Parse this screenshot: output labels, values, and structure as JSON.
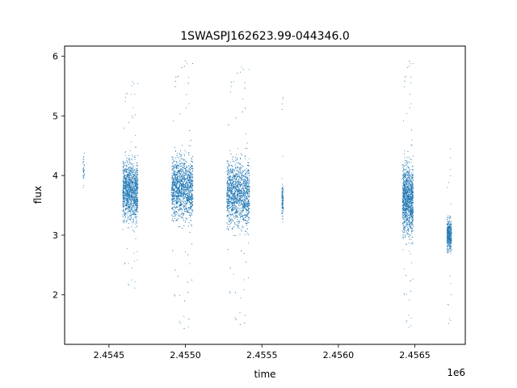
{
  "chart_data": {
    "type": "scatter",
    "title": "1SWASPJ162623.99-044346.0",
    "xlabel": "time",
    "ylabel": "flux",
    "x_offset_label": "1e6",
    "xlim": [
      2.45421,
      2.45683
    ],
    "ylim": [
      1.17,
      6.17
    ],
    "x_ticks": [
      {
        "value": 2.4545,
        "label": "2.4545"
      },
      {
        "value": 2.455,
        "label": "2.4550"
      },
      {
        "value": 2.4555,
        "label": "2.4555"
      },
      {
        "value": 2.456,
        "label": "2.4560"
      },
      {
        "value": 2.4565,
        "label": "2.4565"
      }
    ],
    "y_ticks": [
      {
        "value": 2,
        "label": "2"
      },
      {
        "value": 3,
        "label": "3"
      },
      {
        "value": 4,
        "label": "4"
      },
      {
        "value": 5,
        "label": "5"
      },
      {
        "value": 6,
        "label": "6"
      }
    ],
    "grid": false,
    "marker_color": "#1f77b4",
    "series": [
      {
        "clusters": [
          {
            "x_range": [
              2.45433,
              2.45434
            ],
            "y_center": 4.1,
            "y_spread": 0.2,
            "y_min": 3.75,
            "y_max": 4.65,
            "density": 40
          },
          {
            "x_range": [
              2.45459,
              2.45469
            ],
            "y_center": 3.75,
            "y_spread": 0.4,
            "y_min": 2.05,
            "y_max": 5.6,
            "density": 1500
          },
          {
            "x_range": [
              2.45491,
              2.45505
            ],
            "y_center": 3.8,
            "y_spread": 0.42,
            "y_min": 1.38,
            "y_max": 5.95,
            "density": 2200
          },
          {
            "x_range": [
              2.45527,
              2.45542
            ],
            "y_center": 3.7,
            "y_spread": 0.45,
            "y_min": 1.45,
            "y_max": 5.85,
            "density": 2200
          },
          {
            "x_range": [
              2.45563,
              2.45564
            ],
            "y_center": 3.6,
            "y_spread": 0.22,
            "y_min": 2.95,
            "y_max": 5.35,
            "density": 120
          },
          {
            "x_range": [
              2.45642,
              2.45649
            ],
            "y_center": 3.6,
            "y_spread": 0.48,
            "y_min": 1.4,
            "y_max": 5.95,
            "density": 1600
          },
          {
            "x_range": [
              2.45671,
              2.45674
            ],
            "y_center": 3.0,
            "y_spread": 0.22,
            "y_min": 1.42,
            "y_max": 4.5,
            "density": 500
          }
        ]
      }
    ]
  }
}
